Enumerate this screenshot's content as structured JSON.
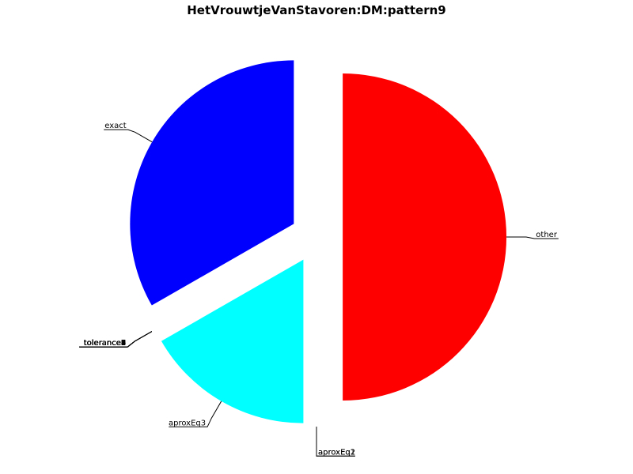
{
  "chart_data": {
    "type": "pie",
    "title": "HetVrouwtjeVanStavoren:DM:pattern9",
    "slices": [
      {
        "label": "other",
        "value": 50.0,
        "color": "#ff0000",
        "exploded": true
      },
      {
        "label": "aproxEq1",
        "value": 0.0,
        "color": "#00ff00",
        "exploded": true
      },
      {
        "label": "aproxEq2",
        "value": 0.0,
        "color": "#ffff00",
        "exploded": true
      },
      {
        "label": "aproxEq3",
        "value": 16.7,
        "color": "#00ffff",
        "exploded": true
      },
      {
        "label": "tolerance1",
        "value": 0.0,
        "color": "#ff00ff",
        "exploded": true
      },
      {
        "label": "tolerance2",
        "value": 0.0,
        "color": "#ff8000",
        "exploded": true
      },
      {
        "label": "tolerance3",
        "value": 0.0,
        "color": "#800080",
        "exploded": true
      },
      {
        "label": "tolerance4",
        "value": 0.0,
        "color": "#808000",
        "exploded": true
      },
      {
        "label": "tolerance5",
        "value": 0.0,
        "color": "#008080",
        "exploded": true
      },
      {
        "label": "tolerance6",
        "value": 0.0,
        "color": "#800000",
        "exploded": true
      },
      {
        "label": "tolerance7",
        "value": 0.0,
        "color": "#000080",
        "exploded": true
      },
      {
        "label": "tolerance8",
        "value": 0.0,
        "color": "#008000",
        "exploded": true
      },
      {
        "label": "tolerance9",
        "value": 0.0,
        "color": "#808080",
        "exploded": true
      },
      {
        "label": "exact",
        "value": 33.3,
        "color": "#0000ff",
        "exploded": true
      }
    ]
  }
}
